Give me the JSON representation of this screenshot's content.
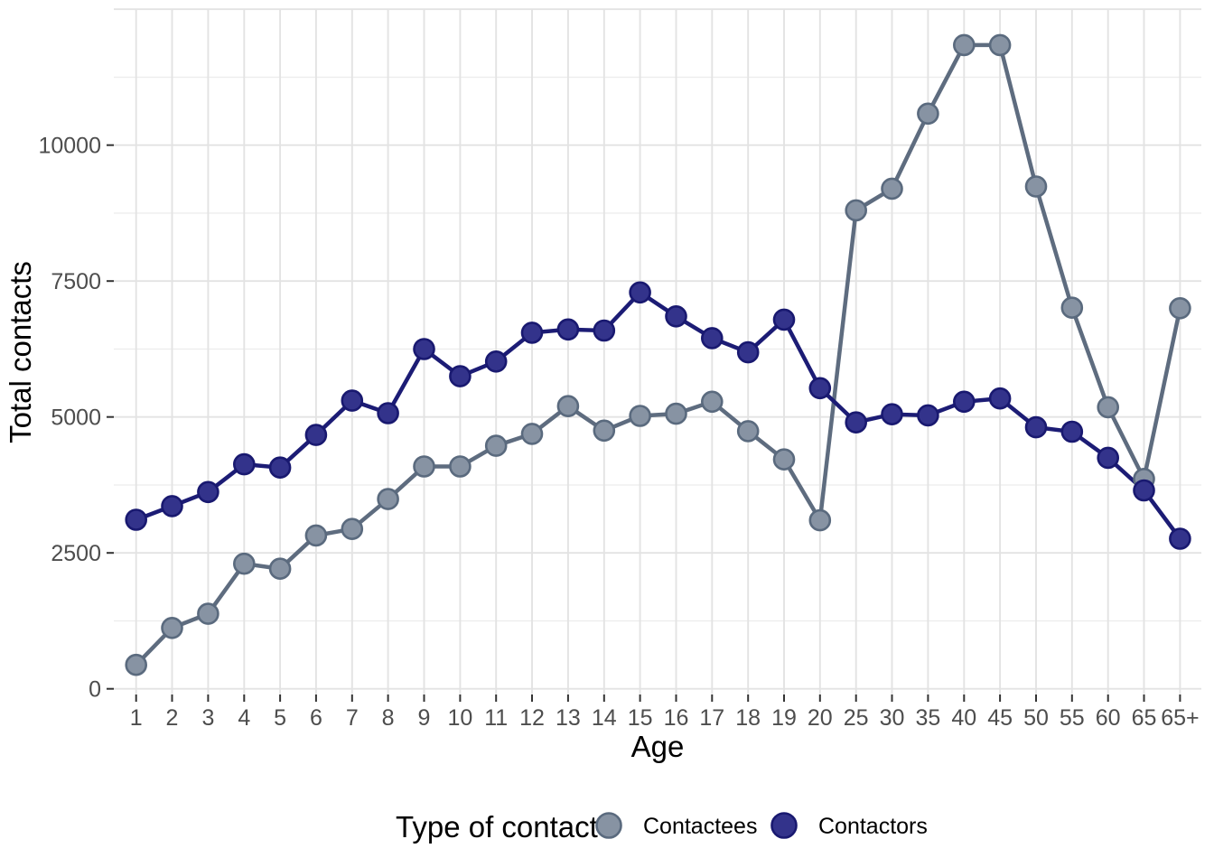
{
  "canvas": {
    "background": "#ffffff"
  },
  "chart_data": {
    "type": "line",
    "title": "",
    "xlabel": "Age",
    "ylabel": "Total contacts",
    "categories": [
      "1",
      "2",
      "3",
      "4",
      "5",
      "6",
      "7",
      "8",
      "9",
      "10",
      "11",
      "12",
      "13",
      "14",
      "15",
      "16",
      "17",
      "18",
      "19",
      "20",
      "25",
      "30",
      "35",
      "40",
      "45",
      "50",
      "55",
      "60",
      "65",
      "65+"
    ],
    "y_ticks": [
      0,
      2500,
      5000,
      7500,
      10000
    ],
    "ylim": [
      0,
      12500
    ],
    "grid": {
      "show": true,
      "color_major": "#e3e3e3",
      "color_minor": "#ececec",
      "horizontal_minor_step": 1250,
      "vertical": "one line per category"
    },
    "axis": {
      "tick_color": "#333333",
      "tick_label_color": "#4d4d4d",
      "title_color": "#000000"
    },
    "legend": {
      "title": "Type of contact",
      "position": "bottom",
      "entries": [
        "Contactees",
        "Contactors"
      ]
    },
    "series": [
      {
        "name": "Contactees",
        "line_color": "#5e6c7f",
        "point_fill": "#8793a3",
        "point_stroke": "#5a6a7e",
        "values": [
          440,
          1120,
          1380,
          2300,
          2210,
          2820,
          2940,
          3490,
          4090,
          4090,
          4470,
          4690,
          5200,
          4750,
          5020,
          5060,
          5280,
          4740,
          4220,
          3100,
          8800,
          9200,
          10580,
          11840,
          11840,
          9240,
          7010,
          5180,
          3860,
          7000
        ]
      },
      {
        "name": "Contactors",
        "line_color": "#1c1c75",
        "point_fill": "#33338b",
        "point_stroke": "#191970",
        "values": [
          3110,
          3360,
          3620,
          4130,
          4070,
          4670,
          5300,
          5070,
          6250,
          5750,
          6020,
          6550,
          6610,
          6590,
          7290,
          6850,
          6450,
          6190,
          6790,
          5530,
          4900,
          5050,
          5030,
          5280,
          5340,
          4810,
          4730,
          4250,
          3650,
          2760
        ]
      }
    ]
  }
}
